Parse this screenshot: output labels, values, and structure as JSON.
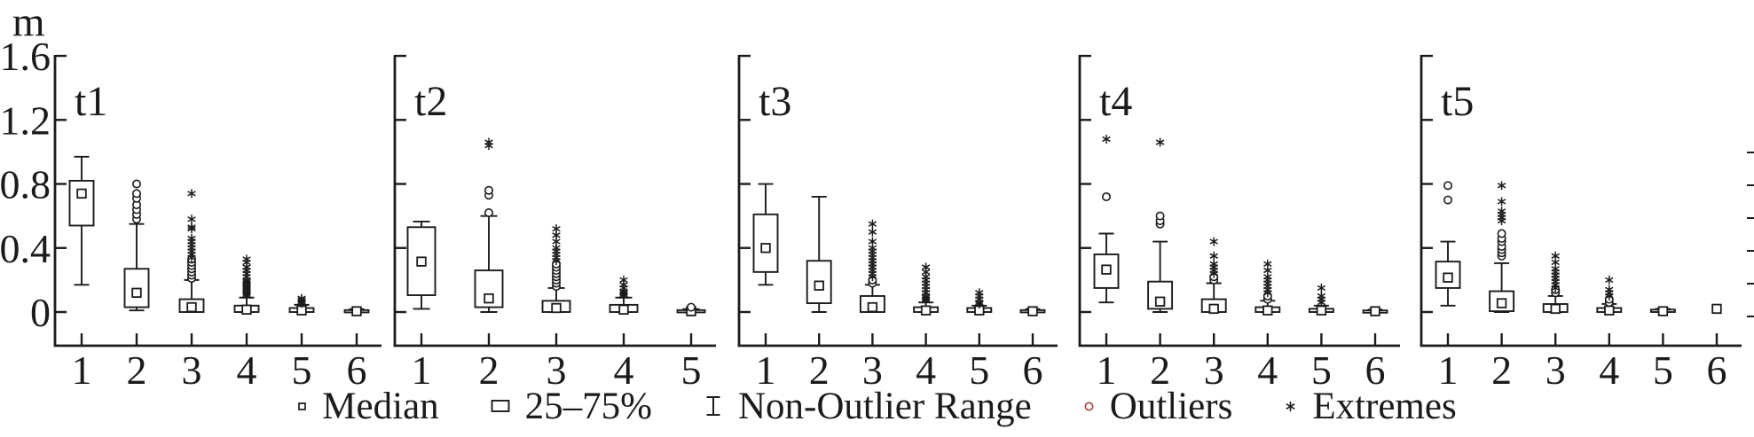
{
  "figure": {
    "y_axis_unit": "m",
    "cropped_right_axis": true
  },
  "colors": {
    "ink": "#1b1b1b",
    "outlier_legend": "#a34747",
    "background": "#ffffff"
  },
  "legend": {
    "items": [
      {
        "marker": "median-marker",
        "label": "Median"
      },
      {
        "marker": "box-marker",
        "label": "25–75%"
      },
      {
        "marker": "whisker-marker",
        "label": "Non-Outlier Range"
      },
      {
        "marker": "outlier-marker",
        "label": "Outliers"
      },
      {
        "marker": "extreme-marker",
        "label": "Extremes"
      }
    ]
  },
  "chart_data": {
    "type": "boxplot",
    "ylabel": "m",
    "yticks": [
      0,
      0.4,
      0.8,
      1.2,
      1.6
    ],
    "ylim": [
      -0.2,
      1.6
    ],
    "grid": false,
    "legend_position": "bottom",
    "panels": [
      {
        "label": "t1",
        "categories": [
          "1",
          "2",
          "3",
          "4",
          "5",
          "6"
        ],
        "boxes": [
          {
            "category": "1",
            "low": 0.17,
            "q1": 0.54,
            "median": 0.74,
            "q3": 0.82,
            "high": 0.97,
            "outliers": [],
            "extremes": []
          },
          {
            "category": "2",
            "low": 0.01,
            "q1": 0.03,
            "median": 0.12,
            "q3": 0.27,
            "high": 0.55,
            "outliers": [
              0.58,
              0.61,
              0.64,
              0.67,
              0.71,
              0.74,
              0.8
            ],
            "extremes": []
          },
          {
            "category": "3",
            "low": 0,
            "q1": 0,
            "median": 0.03,
            "q3": 0.08,
            "high": 0.2,
            "outliers": [
              0.21,
              0.23,
              0.25,
              0.27,
              0.29,
              0.31,
              0.33
            ],
            "extremes": [
              0.34,
              0.36,
              0.38,
              0.4,
              0.42,
              0.44,
              0.46,
              0.52,
              0.53,
              0.58,
              0.74
            ]
          },
          {
            "category": "4",
            "low": 0,
            "q1": 0,
            "median": 0.015,
            "q3": 0.04,
            "high": 0.09,
            "outliers": [],
            "extremes": [
              0.1,
              0.11,
              0.12,
              0.13,
              0.14,
              0.15,
              0.16,
              0.17,
              0.18,
              0.19,
              0.2,
              0.22,
              0.24,
              0.26,
              0.28,
              0.31,
              0.33
            ]
          },
          {
            "category": "5",
            "low": 0,
            "q1": 0,
            "median": 0.01,
            "q3": 0.025,
            "high": 0.045,
            "outliers": [],
            "extremes": [
              0.055,
              0.065,
              0.075,
              0.085
            ]
          },
          {
            "category": "6",
            "low": 0,
            "q1": 0,
            "median": 0.005,
            "q3": 0.012,
            "high": 0.018,
            "outliers": [],
            "extremes": []
          }
        ]
      },
      {
        "label": "t2",
        "categories": [
          "1",
          "2",
          "3",
          "4",
          "5"
        ],
        "boxes": [
          {
            "category": "1",
            "low": 0.02,
            "q1": 0.105,
            "median": 0.315,
            "q3": 0.53,
            "high": 0.565,
            "outliers": [],
            "extremes": []
          },
          {
            "category": "2",
            "low": 0,
            "q1": 0.03,
            "median": 0.085,
            "q3": 0.26,
            "high": 0.6,
            "outliers": [
              0.62,
              0.73,
              0.76
            ],
            "extremes": [
              1.04,
              1.06
            ]
          },
          {
            "category": "3",
            "low": 0,
            "q1": 0,
            "median": 0.025,
            "q3": 0.07,
            "high": 0.15,
            "outliers": [
              0.16,
              0.18,
              0.2,
              0.22,
              0.24,
              0.26,
              0.28,
              0.3
            ],
            "extremes": [
              0.32,
              0.34,
              0.36,
              0.38,
              0.4,
              0.44,
              0.48,
              0.52
            ]
          },
          {
            "category": "4",
            "low": 0,
            "q1": 0,
            "median": 0.015,
            "q3": 0.045,
            "high": 0.09,
            "outliers": [],
            "extremes": [
              0.1,
              0.11,
              0.12,
              0.13,
              0.15,
              0.17,
              0.2
            ]
          },
          {
            "category": "5",
            "low": 0,
            "q1": 0,
            "median": 0.005,
            "q3": 0.012,
            "high": 0.018,
            "outliers": [
              0.03
            ],
            "extremes": []
          }
        ]
      },
      {
        "label": "t3",
        "categories": [
          "1",
          "2",
          "3",
          "4",
          "5",
          "6"
        ],
        "boxes": [
          {
            "category": "1",
            "low": 0.17,
            "q1": 0.25,
            "median": 0.4,
            "q3": 0.61,
            "high": 0.8,
            "outliers": [],
            "extremes": []
          },
          {
            "category": "2",
            "low": 0,
            "q1": 0.055,
            "median": 0.165,
            "q3": 0.32,
            "high": 0.72,
            "outliers": [],
            "extremes": []
          },
          {
            "category": "3",
            "low": 0,
            "q1": 0,
            "median": 0.03,
            "q3": 0.1,
            "high": 0.17,
            "outliers": [
              0.18,
              0.2
            ],
            "extremes": [
              0.22,
              0.24,
              0.26,
              0.28,
              0.3,
              0.32,
              0.34,
              0.36,
              0.38,
              0.4,
              0.44,
              0.5,
              0.55
            ]
          },
          {
            "category": "4",
            "low": 0,
            "q1": 0,
            "median": 0.01,
            "q3": 0.03,
            "high": 0.06,
            "outliers": [],
            "extremes": [
              0.07,
              0.08,
              0.09,
              0.1,
              0.12,
              0.14,
              0.16,
              0.18,
              0.2,
              0.22,
              0.25,
              0.28
            ]
          },
          {
            "category": "5",
            "low": 0,
            "q1": 0,
            "median": 0.01,
            "q3": 0.025,
            "high": 0.04,
            "outliers": [],
            "extremes": [
              0.05,
              0.06,
              0.08,
              0.1,
              0.12
            ]
          },
          {
            "category": "6",
            "low": 0,
            "q1": 0,
            "median": 0.005,
            "q3": 0.012,
            "high": 0.018,
            "outliers": [],
            "extremes": []
          }
        ]
      },
      {
        "label": "t4",
        "categories": [
          "1",
          "2",
          "3",
          "4",
          "5",
          "6"
        ],
        "boxes": [
          {
            "category": "1",
            "low": 0.06,
            "q1": 0.15,
            "median": 0.265,
            "q3": 0.36,
            "high": 0.49,
            "outliers": [
              0.72
            ],
            "extremes": [
              1.08
            ]
          },
          {
            "category": "2",
            "low": 0,
            "q1": 0.02,
            "median": 0.065,
            "q3": 0.19,
            "high": 0.44,
            "outliers": [
              0.55,
              0.57,
              0.6
            ],
            "extremes": [
              1.06
            ]
          },
          {
            "category": "3",
            "low": 0,
            "q1": 0,
            "median": 0.02,
            "q3": 0.08,
            "high": 0.18,
            "outliers": [
              0.2,
              0.22
            ],
            "extremes": [
              0.24,
              0.26,
              0.28,
              0.3,
              0.35,
              0.44
            ]
          },
          {
            "category": "4",
            "low": 0,
            "q1": 0,
            "median": 0.01,
            "q3": 0.03,
            "high": 0.07,
            "outliers": [
              0.08,
              0.1
            ],
            "extremes": [
              0.12,
              0.14,
              0.16,
              0.18,
              0.2,
              0.22,
              0.26,
              0.3
            ]
          },
          {
            "category": "5",
            "low": 0,
            "q1": 0,
            "median": 0.01,
            "q3": 0.02,
            "high": 0.04,
            "outliers": [],
            "extremes": [
              0.06,
              0.08,
              0.1,
              0.15
            ]
          },
          {
            "category": "6",
            "low": 0,
            "q1": 0,
            "median": 0.005,
            "q3": 0.01,
            "high": 0.015,
            "outliers": [],
            "extremes": []
          }
        ]
      },
      {
        "label": "t5",
        "categories": [
          "1",
          "2",
          "3",
          "4",
          "5",
          "6"
        ],
        "boxes": [
          {
            "category": "1",
            "low": 0.04,
            "q1": 0.15,
            "median": 0.215,
            "q3": 0.315,
            "high": 0.44,
            "outliers": [
              0.7,
              0.79
            ],
            "extremes": []
          },
          {
            "category": "2",
            "low": 0,
            "q1": 0.005,
            "median": 0.055,
            "q3": 0.13,
            "high": 0.305,
            "outliers": [
              0.35,
              0.37,
              0.39,
              0.41,
              0.44,
              0.46,
              0.49
            ],
            "extremes": [
              0.57,
              0.59,
              0.61,
              0.63,
              0.69,
              0.79
            ]
          },
          {
            "category": "3",
            "low": 0,
            "q1": 0,
            "median": 0.02,
            "q3": 0.05,
            "high": 0.1,
            "outliers": [
              0.12,
              0.14
            ],
            "extremes": [
              0.15,
              0.17,
              0.19,
              0.21,
              0.23,
              0.25,
              0.27,
              0.31,
              0.35
            ]
          },
          {
            "category": "4",
            "low": 0,
            "q1": 0,
            "median": 0.01,
            "q3": 0.025,
            "high": 0.05,
            "outliers": [
              0.06,
              0.08
            ],
            "extremes": [
              0.1,
              0.12,
              0.14,
              0.2
            ]
          },
          {
            "category": "5",
            "low": 0,
            "q1": 0,
            "median": 0.005,
            "q3": 0.015,
            "high": 0.02,
            "outliers": [],
            "extremes": []
          },
          {
            "category": "6",
            "low": null,
            "q1": null,
            "median": 0.02,
            "q3": null,
            "high": null,
            "outliers": [],
            "extremes": []
          }
        ]
      }
    ]
  }
}
